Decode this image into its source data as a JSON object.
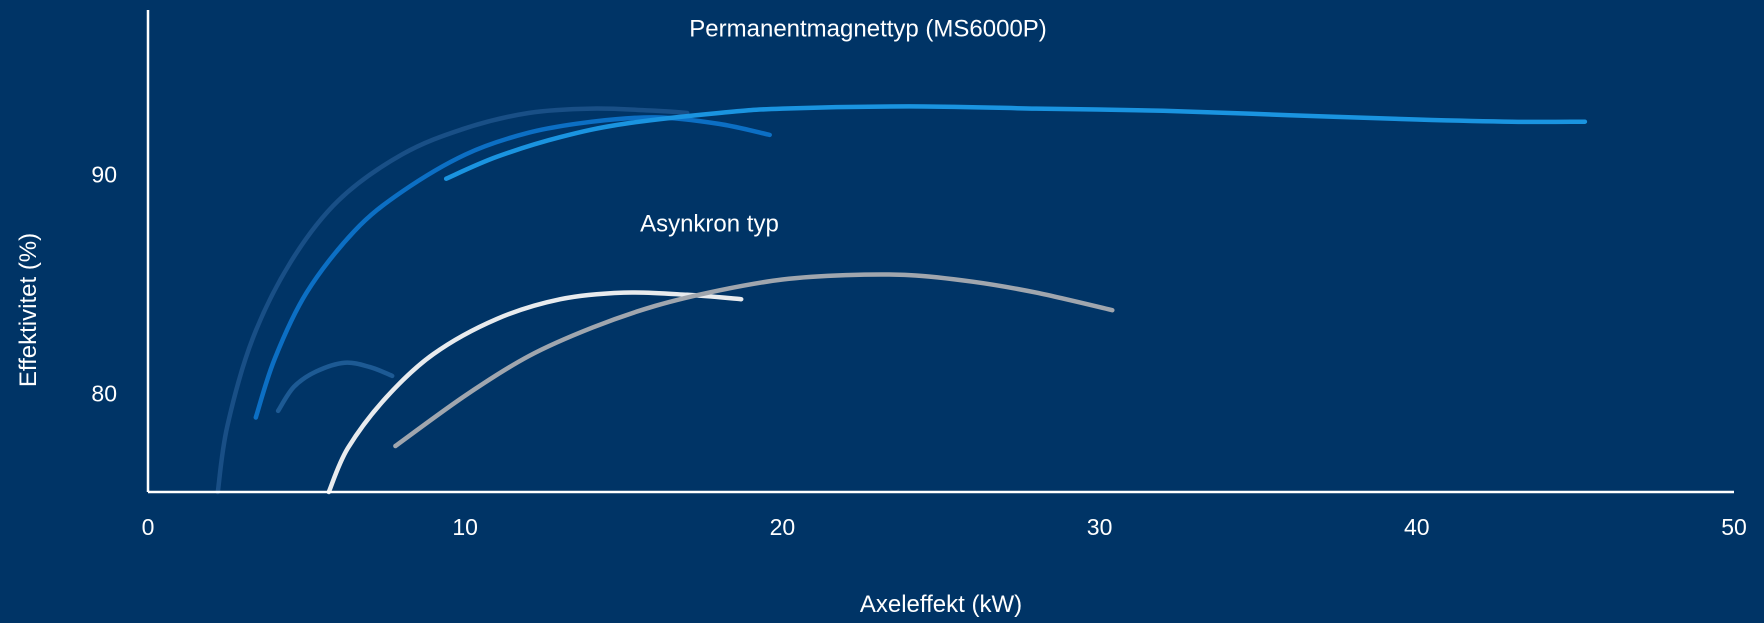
{
  "chart_data": {
    "type": "line",
    "title": "",
    "xlabel": "Axeleffekt (kW)",
    "ylabel": "Effektivitet (%)",
    "xlim": [
      0,
      50
    ],
    "ylim": [
      75.5,
      97.5
    ],
    "x_ticks": [
      0,
      10,
      20,
      30,
      40,
      50
    ],
    "y_ticks": [
      80,
      90
    ],
    "x_tick_labels": [
      "0",
      "10",
      "20",
      "30",
      "40",
      "50"
    ],
    "y_tick_labels": [
      "80",
      "90"
    ],
    "grid": false,
    "legend": "none",
    "annotations": [
      {
        "text": "Permanentmagnettyp (MS6000P)",
        "x": 22.7,
        "y": 96.3
      },
      {
        "text": "Asynkron typ",
        "x": 17.7,
        "y": 87.4
      }
    ],
    "series": [
      {
        "group": "Permanentmagnettyp (MS6000P)",
        "color": "#194f86",
        "points": [
          [
            2.2,
            75.5
          ],
          [
            2.5,
            78.5
          ],
          [
            3.3,
            82.5
          ],
          [
            4.5,
            86.0
          ],
          [
            6.0,
            88.8
          ],
          [
            8.0,
            90.9
          ],
          [
            10.0,
            92.1
          ],
          [
            12.0,
            92.8
          ],
          [
            14.0,
            93.0
          ],
          [
            16.0,
            92.9
          ],
          [
            17.0,
            92.8
          ]
        ]
      },
      {
        "group": "Permanentmagnettyp (MS6000P)",
        "color": "#0c6fc4",
        "points": [
          [
            3.4,
            78.9
          ],
          [
            4.0,
            81.6
          ],
          [
            5.0,
            84.6
          ],
          [
            6.5,
            87.4
          ],
          [
            8.0,
            89.2
          ],
          [
            10.0,
            90.9
          ],
          [
            12.0,
            91.9
          ],
          [
            14.0,
            92.4
          ],
          [
            16.0,
            92.6
          ],
          [
            18.0,
            92.3
          ],
          [
            19.6,
            91.8
          ]
        ]
      },
      {
        "group": "Permanentmagnettyp (MS6000P)",
        "color": "#1a94e0",
        "points": [
          [
            9.4,
            89.8
          ],
          [
            11.0,
            90.8
          ],
          [
            13.0,
            91.7
          ],
          [
            15.0,
            92.3
          ],
          [
            18.0,
            92.8
          ],
          [
            20.0,
            93.0
          ],
          [
            24.0,
            93.1
          ],
          [
            28.0,
            93.0
          ],
          [
            32.0,
            92.9
          ],
          [
            36.0,
            92.7
          ],
          [
            40.0,
            92.5
          ],
          [
            43.0,
            92.4
          ],
          [
            45.3,
            92.4
          ]
        ]
      },
      {
        "group": "Permanentmagnettyp (MS6000P)",
        "color": "#1d5a94",
        "points": [
          [
            4.1,
            79.2
          ],
          [
            4.6,
            80.3
          ],
          [
            5.3,
            81.0
          ],
          [
            6.2,
            81.4
          ],
          [
            7.0,
            81.2
          ],
          [
            7.7,
            80.8
          ]
        ]
      },
      {
        "group": "Asynkron typ",
        "color": "#e8ebee",
        "points": [
          [
            5.7,
            75.5
          ],
          [
            6.3,
            77.5
          ],
          [
            7.5,
            79.8
          ],
          [
            9.0,
            81.8
          ],
          [
            11.0,
            83.4
          ],
          [
            13.0,
            84.3
          ],
          [
            15.0,
            84.6
          ],
          [
            17.0,
            84.5
          ],
          [
            18.7,
            84.3
          ]
        ]
      },
      {
        "group": "Asynkron typ",
        "color": "#a0a6ae",
        "points": [
          [
            7.8,
            77.6
          ],
          [
            10.0,
            79.9
          ],
          [
            12.0,
            81.7
          ],
          [
            14.0,
            83.0
          ],
          [
            16.0,
            84.0
          ],
          [
            18.0,
            84.7
          ],
          [
            20.0,
            85.2
          ],
          [
            22.0,
            85.4
          ],
          [
            24.0,
            85.4
          ],
          [
            26.0,
            85.1
          ],
          [
            28.0,
            84.6
          ],
          [
            30.4,
            83.8
          ]
        ]
      }
    ]
  }
}
